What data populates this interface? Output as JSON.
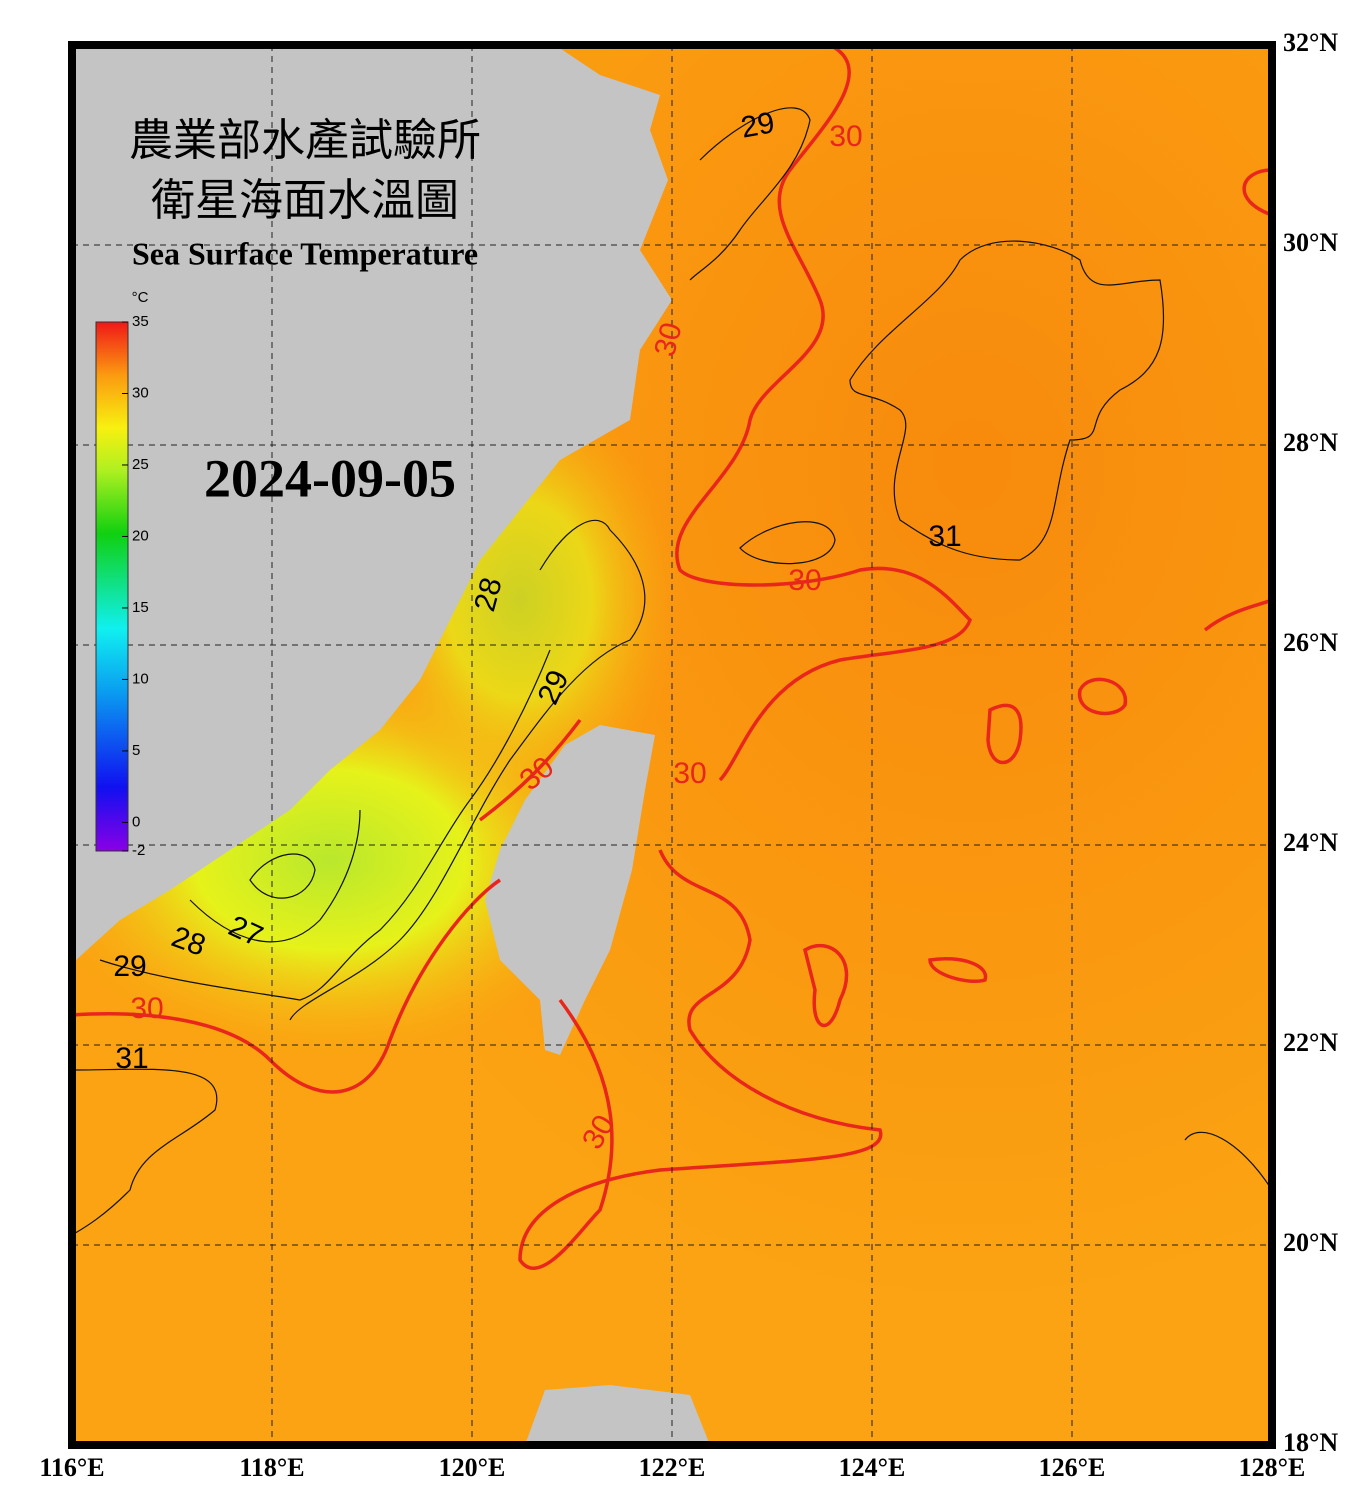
{
  "map": {
    "title_zh_1": "農業部水產試驗所",
    "title_zh_2": "衛星海面水溫圖",
    "title_en": "Sea Surface Temperature",
    "date": "2024-09-05",
    "lonlim": [
      116,
      128
    ],
    "latlim": [
      18,
      32
    ],
    "lonticks": [
      {
        "value": 116,
        "label": "116°E"
      },
      {
        "value": 118,
        "label": "118°E"
      },
      {
        "value": 120,
        "label": "120°E"
      },
      {
        "value": 122,
        "label": "122°E"
      },
      {
        "value": 124,
        "label": "124°E"
      },
      {
        "value": 126,
        "label": "126°E"
      },
      {
        "value": 128,
        "label": "128°E"
      }
    ],
    "latticks": [
      {
        "value": 18,
        "label": "18°N"
      },
      {
        "value": 20,
        "label": "20°N"
      },
      {
        "value": 22,
        "label": "22°N"
      },
      {
        "value": 24,
        "label": "24°N"
      },
      {
        "value": 26,
        "label": "26°N"
      },
      {
        "value": 28,
        "label": "28°N"
      },
      {
        "value": 30,
        "label": "30°N"
      },
      {
        "value": 32,
        "label": "32°N"
      }
    ],
    "grid": true,
    "colorbar": {
      "unit": "°C",
      "lim": [
        -2,
        35
      ],
      "ticks": [
        35,
        30,
        25,
        20,
        15,
        10,
        5,
        0,
        -2
      ]
    },
    "contour_labels": [
      29,
      30,
      30,
      31,
      30,
      28,
      29,
      30,
      30,
      28,
      27,
      29,
      30,
      31,
      30
    ]
  }
}
